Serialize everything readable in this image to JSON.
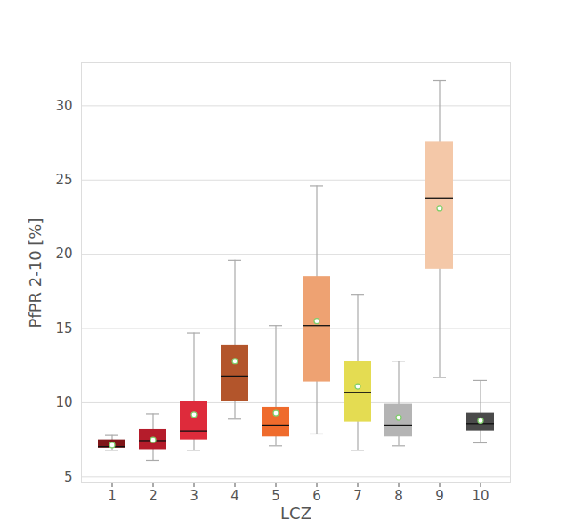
{
  "chart_data": {
    "type": "box",
    "x_label": "LCZ",
    "y_label": "PfPR 2-10 [%]",
    "categories": [
      1,
      2,
      3,
      4,
      5,
      6,
      7,
      8,
      9,
      10
    ],
    "whisker_low": [
      6.8,
      6.1,
      6.8,
      8.9,
      7.1,
      7.9,
      6.8,
      7.1,
      11.7,
      7.3
    ],
    "q1": [
      6.95,
      6.85,
      7.5,
      10.1,
      7.7,
      11.4,
      8.7,
      7.7,
      19.0,
      8.1
    ],
    "median": [
      7.05,
      7.45,
      8.1,
      11.8,
      8.5,
      15.2,
      10.7,
      8.5,
      23.8,
      8.6
    ],
    "q3": [
      7.5,
      8.2,
      10.1,
      13.9,
      9.7,
      18.5,
      12.8,
      9.9,
      27.6,
      9.3
    ],
    "whisker_high": [
      7.8,
      9.25,
      14.7,
      19.6,
      15.2,
      24.6,
      17.3,
      12.8,
      31.7,
      11.5
    ],
    "mean": [
      7.15,
      7.5,
      9.2,
      12.8,
      9.3,
      15.5,
      11.1,
      9.0,
      23.1,
      8.8
    ],
    "colors": [
      "#7f1518",
      "#b51c2b",
      "#de2b3b",
      "#b3552b",
      "#ef6b2c",
      "#eea272",
      "#e4dc52",
      "#b4b4b4",
      "#f4c8a8",
      "#4a4a4a"
    ],
    "ylim": [
      4.6,
      32.9
    ],
    "yticks": [
      5,
      10,
      15,
      20,
      25,
      30
    ],
    "grid": true,
    "marker": "circle"
  }
}
